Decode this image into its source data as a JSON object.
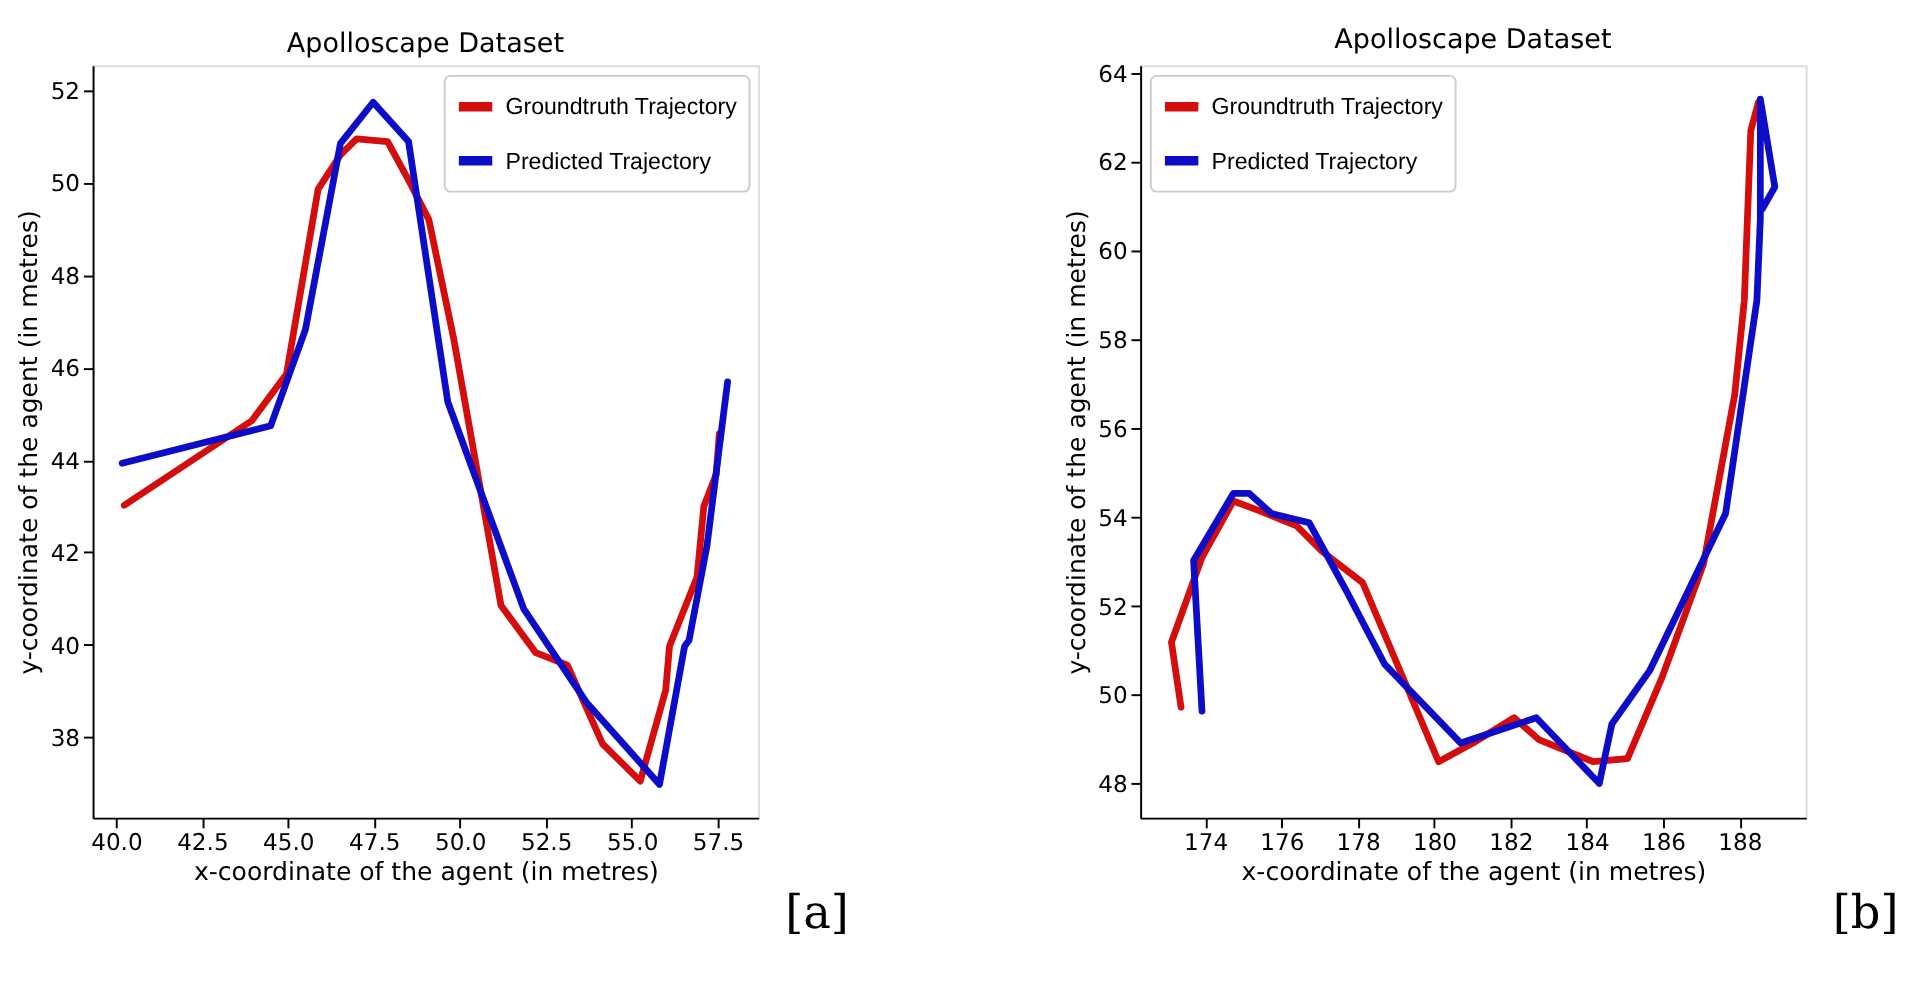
{
  "chart_data": [
    {
      "type": "line",
      "title": "Apolloscape Dataset",
      "xlabel": "x-coordinate of the agent (in metres)",
      "ylabel": "y-coordinate of the agent (in metres)",
      "legend": "top right",
      "grid": false,
      "marker": "none",
      "line_style": "solid",
      "annotations": [
        "[a]"
      ],
      "xlim": [
        39.32,
        58.68
      ],
      "ylim": [
        36.26,
        52.54
      ],
      "xticks": [
        {
          "value": 40,
          "label": "40.0"
        },
        42.5,
        {
          "value": 45,
          "label": "45.0"
        },
        47.5,
        {
          "value": 50,
          "label": "50.0"
        },
        52.5,
        {
          "value": 55,
          "label": "55.0"
        },
        57.5
      ],
      "yticks": [
        38,
        40,
        42,
        44,
        46,
        48,
        50,
        52
      ],
      "series": [
        {
          "name": "Groundtruth Trajectory",
          "color": "#d40d0d",
          "x": [
            40.24,
            43.95,
            44.96,
            45.88,
            46.53,
            47.0,
            47.9,
            48.55,
            49.1,
            49.83,
            51.2,
            52.21,
            53.13,
            54.15,
            55.25,
            55.99,
            56.1,
            56.9,
            57.1,
            57.46,
            57.55
          ],
          "values": [
            43.02,
            44.85,
            45.86,
            49.86,
            50.6,
            50.95,
            50.89,
            50.0,
            49.2,
            46.6,
            40.85,
            39.83,
            39.56,
            37.86,
            37.05,
            39.02,
            39.97,
            41.46,
            43.0,
            43.69,
            44.57
          ]
        },
        {
          "name": "Predicted Trajectory",
          "color": "#0d0dc8",
          "x": [
            40.18,
            44.5,
            45.51,
            46.53,
            47.48,
            48.51,
            49.65,
            51.86,
            53.7,
            55.81,
            56.54,
            56.67,
            57.19,
            57.79
          ],
          "values": [
            43.93,
            44.74,
            46.82,
            50.85,
            51.74,
            50.89,
            45.26,
            40.78,
            38.74,
            36.98,
            39.97,
            40.1,
            42.14,
            45.69
          ]
        }
      ]
    },
    {
      "type": "line",
      "title": "Apolloscape Dataset",
      "xlabel": "x-coordinate of the agent (in metres)",
      "ylabel": "y-coordinate of the agent (in metres)",
      "legend": "top left",
      "grid": false,
      "marker": "none",
      "line_style": "solid",
      "annotations": [
        "[b]"
      ],
      "xlim": [
        172.3,
        189.74
      ],
      "ylim": [
        47.23,
        64.17
      ],
      "xticks": [
        174,
        176,
        178,
        180,
        182,
        184,
        186,
        188
      ],
      "yticks": [
        48,
        50,
        52,
        54,
        56,
        58,
        60,
        62,
        64
      ],
      "series": [
        {
          "name": "Groundtruth Trajectory",
          "color": "#d40d0d",
          "x": [
            173.37,
            173.12,
            173.92,
            174.74,
            175.4,
            176.4,
            177.06,
            178.13,
            179.04,
            180.12,
            181.02,
            182.1,
            182.76,
            184.17,
            185.07,
            185.98,
            187.06,
            187.88,
            188.13,
            188.3,
            188.5
          ],
          "values": [
            49.72,
            51.18,
            53.09,
            54.36,
            54.15,
            53.8,
            53.23,
            52.52,
            50.68,
            48.49,
            48.91,
            49.48,
            48.98,
            48.49,
            48.56,
            50.4,
            52.94,
            56.76,
            58.88,
            62.7,
            63.34
          ]
        },
        {
          "name": "Predicted Trajectory",
          "color": "#0d0dc8",
          "x": [
            173.92,
            173.7,
            174.74,
            175.16,
            175.74,
            176.73,
            177.72,
            178.71,
            180.7,
            182.68,
            184.33,
            184.66,
            185.65,
            187.64,
            188.46,
            188.55,
            188.55,
            188.93,
            188.6
          ],
          "values": [
            49.63,
            53.02,
            54.53,
            54.53,
            54.08,
            53.87,
            52.31,
            50.68,
            48.91,
            49.48,
            48.0,
            49.34,
            50.54,
            54.08,
            58.88,
            60.71,
            63.41,
            61.43,
            60.93
          ]
        }
      ]
    }
  ]
}
